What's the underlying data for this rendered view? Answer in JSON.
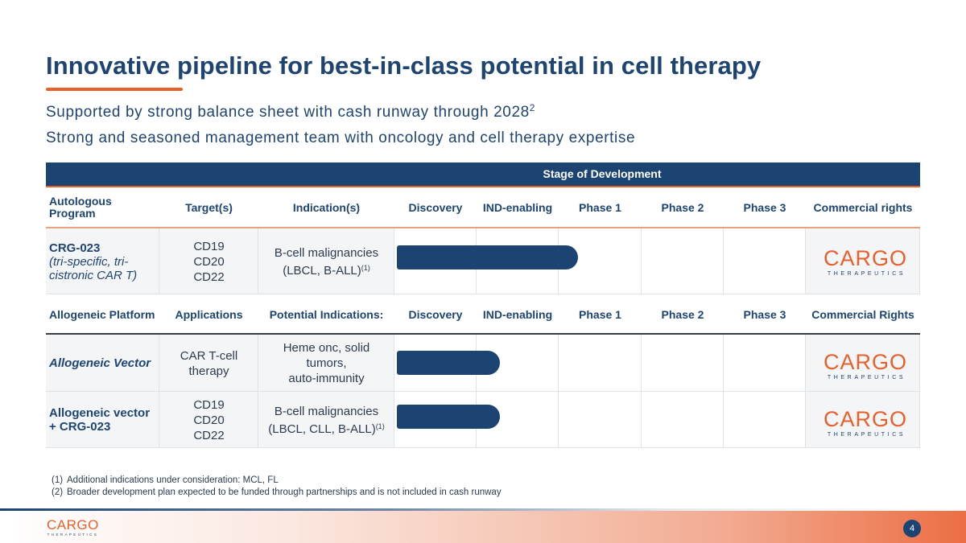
{
  "title": "Innovative pipeline for best-in-class potential in cell therapy",
  "subtitles": {
    "line1": "Supported by strong balance sheet with cash runway through 2028",
    "line1_sup": "2",
    "line2": "Strong and seasoned management team with oncology and cell therapy expertise"
  },
  "colors": {
    "navy": "#1c4472",
    "orange": "#e8602c"
  },
  "table": {
    "stage_header": "Stage of Development",
    "autologous_header": {
      "program": "Autologous Program",
      "targets": "Target(s)",
      "indications": "Indication(s)",
      "discovery": "Discovery",
      "ind": "IND-enabling",
      "phase1": "Phase 1",
      "phase2": "Phase 2",
      "phase3": "Phase 3",
      "rights": "Commercial rights"
    },
    "crg023": {
      "name": "CRG-023",
      "desc": "(tri-specific, tri-cistronic CAR T)",
      "targets": [
        "CD19",
        "CD20",
        "CD22"
      ],
      "indication_1": "B-cell malignancies",
      "indication_2": "(LBCL, B-ALL)",
      "indication_sup": "(1)",
      "progress_fraction": 0.44
    },
    "allogeneic_header": {
      "program": "Allogeneic Platform",
      "applications": "Applications",
      "indications": "Potential Indications:",
      "discovery": "Discovery",
      "ind": "IND-enabling",
      "phase1": "Phase 1",
      "phase2": "Phase 2",
      "phase3": "Phase 3",
      "rights": "Commercial Rights"
    },
    "allo_vector": {
      "name": "Allogeneic Vector",
      "application": "CAR T-cell therapy",
      "indication_1": "Heme onc, solid tumors,",
      "indication_2": "auto-immunity",
      "progress_fraction": 0.25
    },
    "allo_combo": {
      "name": "Allogeneic vector + CRG-023",
      "targets": [
        "CD19",
        "CD20",
        "CD22"
      ],
      "indication_1": "B-cell malignancies",
      "indication_2": "(LBCL, CLL, B-ALL)",
      "indication_sup": "(1)",
      "progress_fraction": 0.25
    }
  },
  "logo": {
    "word": "CARGO",
    "tagline": "THERAPEUTICS"
  },
  "footnotes": [
    {
      "num": "(1)",
      "text": "Additional indications under consideration: MCL, FL"
    },
    {
      "num": "(2)",
      "text": "Broader development plan expected to be funded through partnerships and is not included in cash runway"
    }
  ],
  "page_number": "4"
}
